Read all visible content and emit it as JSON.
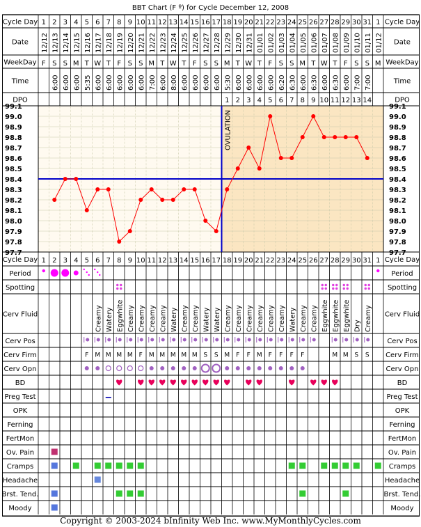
{
  "title": "BBT Chart (F º) for Cycle December 12, 2008",
  "copyright": "Copyright © 2003-2024 bInfinity Web Inc.    www.MyMonthlyCycles.com",
  "row_labels": {
    "cycle_day": "Cycle Day",
    "date": "Date",
    "weekday": "WeekDay",
    "time": "Time",
    "dpo": "DPO",
    "period": "Period",
    "spotting": "Spotting",
    "cerv_fluid": "Cerv Fluid",
    "cerv_pos": "Cerv Pos",
    "cerv_firm": "Cerv Firm",
    "cerv_opn": "Cerv Opn",
    "bd": "BD",
    "preg_test": "Preg Test",
    "opk": "OPK",
    "ferning": "Ferning",
    "fertmon": "FertMon",
    "ov_pain": "Ov. Pain",
    "cramps": "Cramps",
    "headache": "Headache",
    "brst_tend": "Brst. Tend.",
    "moody": "Moody"
  },
  "days": [
    "1",
    "2",
    "3",
    "4",
    "5",
    "6",
    "7",
    "8",
    "9",
    "10",
    "11",
    "12",
    "13",
    "14",
    "15",
    "16",
    "17",
    "18",
    "19",
    "20",
    "21",
    "22",
    "23",
    "24",
    "25",
    "26",
    "27",
    "28",
    "29",
    "30",
    "31",
    "1"
  ],
  "dates": [
    "12/12",
    "12/13",
    "12/14",
    "12/15",
    "12/16",
    "12/17",
    "12/18",
    "12/19",
    "12/20",
    "12/21",
    "12/22",
    "12/23",
    "12/24",
    "12/25",
    "12/26",
    "12/27",
    "12/28",
    "12/29",
    "12/30",
    "12/31",
    "01/01",
    "01/02",
    "01/03",
    "01/04",
    "01/05",
    "01/06",
    "01/07",
    "01/08",
    "01/09",
    "01/10",
    "01/11",
    "01/12"
  ],
  "weekdays": [
    "F",
    "S",
    "S",
    "M",
    "T",
    "W",
    "T",
    "F",
    "S",
    "S",
    "M",
    "T",
    "W",
    "T",
    "F",
    "S",
    "S",
    "M",
    "T",
    "W",
    "T",
    "F",
    "S",
    "S",
    "M",
    "T",
    "W",
    "T",
    "F",
    "S",
    "S",
    "M"
  ],
  "times": [
    "",
    "6:00",
    "6:00",
    "6:00",
    "5:35",
    "6:00",
    "6:00",
    "6:00",
    "6:00",
    "6:00",
    "7:00",
    "6:00",
    "8:00",
    "6:00",
    "6:00",
    "6:00",
    "6:00",
    "5:30",
    "6:00",
    "6:00",
    "6:00",
    "6:00",
    "6:20",
    "6:30",
    "6:00",
    "6:30",
    "6:00",
    "6:30",
    "6:00",
    "7:00",
    "7:00",
    ""
  ],
  "dpo": [
    "",
    "",
    "",
    "",
    "",
    "",
    "",
    "",
    "",
    "",
    "",
    "",
    "",
    "",
    "",
    "",
    "",
    "1",
    "2",
    "3",
    "4",
    "5",
    "6",
    "7",
    "8",
    "9",
    "10",
    "11",
    "12",
    "13",
    "14",
    ""
  ],
  "chart_data": {
    "type": "line",
    "ylim": [
      97.7,
      99.1
    ],
    "y_ticks": [
      "99.1",
      "99.0",
      "98.9",
      "98.8",
      "98.7",
      "98.6",
      "98.5",
      "98.4",
      "98.3",
      "98.2",
      "98.1",
      "98.0",
      "97.9",
      "97.8",
      "97.7"
    ],
    "x": [
      2,
      3,
      4,
      5,
      6,
      7,
      8,
      9,
      10,
      11,
      12,
      13,
      14,
      15,
      16,
      17,
      18,
      19,
      20,
      21,
      22,
      23,
      24,
      25,
      26,
      27,
      28,
      29,
      30,
      31
    ],
    "temps": [
      98.2,
      98.4,
      98.4,
      98.1,
      98.3,
      98.3,
      97.8,
      97.9,
      98.2,
      98.3,
      98.2,
      98.2,
      98.3,
      98.3,
      98.0,
      97.9,
      98.3,
      98.5,
      98.7,
      98.5,
      99.0,
      98.6,
      98.6,
      98.8,
      99.0,
      98.8,
      98.8,
      98.8,
      98.8,
      98.6
    ],
    "coverline": 98.4,
    "ovulation_day": 17,
    "ovulation_label": "OVULATION",
    "shaded_from_day": 18,
    "colors": {
      "line": "#ff0000",
      "point": "#ff0000",
      "coverline": "#0000c8",
      "luteal_bg": "#fbe6c2",
      "follicular_bg": "#fffaf0",
      "grid": "#c8c8a8"
    }
  },
  "period": {
    "2": "large",
    "3": "large",
    "4": "medium",
    "5": "spot",
    "6": "spot",
    "1": "small",
    "32": "small"
  },
  "spotting_days": [
    8,
    27,
    28,
    29,
    31
  ],
  "cerv_fluid": {
    "6": "Creamy",
    "7": "Watery",
    "8": "Eggwhite",
    "9": "Creamy",
    "10": "Creamy",
    "11": "Creamy",
    "12": "Creamy",
    "13": "Watery",
    "14": "Creamy",
    "15": "Creamy",
    "16": "Watery",
    "17": "Watery",
    "18": "Creamy",
    "19": "Creamy",
    "20": "Creamy",
    "21": "Creamy",
    "22": "Creamy",
    "23": "Creamy",
    "24": "Watery",
    "25": "Creamy",
    "26": "Creamy",
    "27": "Eggwhite",
    "28": "Eggwhite",
    "29": "Eggwhite",
    "30": "Dry",
    "31": "Creamy"
  },
  "cerv_pos_days": [
    5,
    6,
    7,
    8,
    9,
    10,
    11,
    12,
    13,
    14,
    15,
    16,
    17,
    18,
    19,
    20,
    21,
    22,
    23,
    24,
    25,
    26,
    28,
    29,
    30,
    31
  ],
  "cerv_firm": {
    "5": "F",
    "6": "M",
    "7": "M",
    "8": "M",
    "9": "M",
    "10": "F",
    "11": "M",
    "12": "M",
    "13": "M",
    "14": "M",
    "15": "M",
    "16": "S",
    "17": "S",
    "18": "M",
    "19": "F",
    "20": "F",
    "21": "M",
    "22": "F",
    "23": "F",
    "24": "F",
    "25": "F",
    "28": "M",
    "29": "M",
    "30": "S",
    "31": "S"
  },
  "cerv_opn": {
    "5": "dot",
    "6": "dot",
    "7": "ring",
    "8": "ring",
    "9": "ring",
    "10": "ring",
    "11": "dot",
    "12": "dot",
    "13": "dot",
    "14": "dot",
    "15": "dot",
    "16": "big-ring",
    "17": "big-ring",
    "18": "dot",
    "19": "dot",
    "20": "dot",
    "21": "dot",
    "22": "dot",
    "23": "dot",
    "24": "dot",
    "25": "dot"
  },
  "bd_days": [
    8,
    10,
    11,
    12,
    13,
    14,
    15,
    16,
    17,
    18,
    20,
    21,
    24,
    26,
    27,
    28
  ],
  "preg_test_days": [
    7
  ],
  "ov_pain_days": [
    2
  ],
  "cramps_days": [
    2,
    4,
    6,
    7,
    8,
    9,
    10,
    24,
    25,
    27,
    28,
    29,
    30,
    32
  ],
  "headache_days": [
    6
  ],
  "brst_tend_days": [
    2,
    8,
    9,
    10,
    25,
    29
  ],
  "moody_days": [
    2
  ],
  "marker_colors": {
    "period": "#ff00ff",
    "spotting": "#e040e0",
    "cerv": "#a060c0",
    "bd": "#e8005a",
    "preg": "#3030c0",
    "ov_pain": "#c03070",
    "green": "#33cc33",
    "blue": "#5577dd",
    "headache": "#6688dd"
  }
}
